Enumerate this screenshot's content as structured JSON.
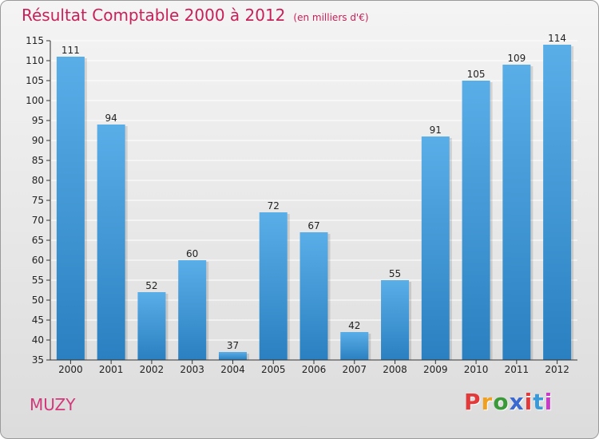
{
  "header": {
    "title": "Résultat Comptable 2000 à 2012",
    "subtitle": "(en milliers d'€)"
  },
  "footer": {
    "commune": "MUZY",
    "logo": "Proxiti"
  },
  "colors": {
    "bar_light": "#5aaee8",
    "bar_dark": "#2a80c0",
    "title": "#c8205a",
    "grid": "#ffffff",
    "logo_letters": [
      "#e23a3a",
      "#f0a020",
      "#3a9a3a",
      "#3a6ad0",
      "#e23a3a",
      "#3a9ad8",
      "#c83ac8"
    ]
  },
  "chart_data": {
    "type": "bar",
    "categories": [
      "2000",
      "2001",
      "2002",
      "2003",
      "2004",
      "2005",
      "2006",
      "2007",
      "2008",
      "2009",
      "2010",
      "2011",
      "2012"
    ],
    "values": [
      111,
      94,
      52,
      60,
      37,
      72,
      67,
      42,
      55,
      91,
      105,
      109,
      114
    ],
    "title": "Résultat Comptable 2000 à 2012",
    "xlabel": "",
    "ylabel": "",
    "ylim": [
      35,
      115
    ],
    "yticks": [
      35,
      40,
      45,
      50,
      55,
      60,
      65,
      70,
      75,
      80,
      85,
      90,
      95,
      100,
      105,
      110,
      115
    ],
    "grid": true
  }
}
